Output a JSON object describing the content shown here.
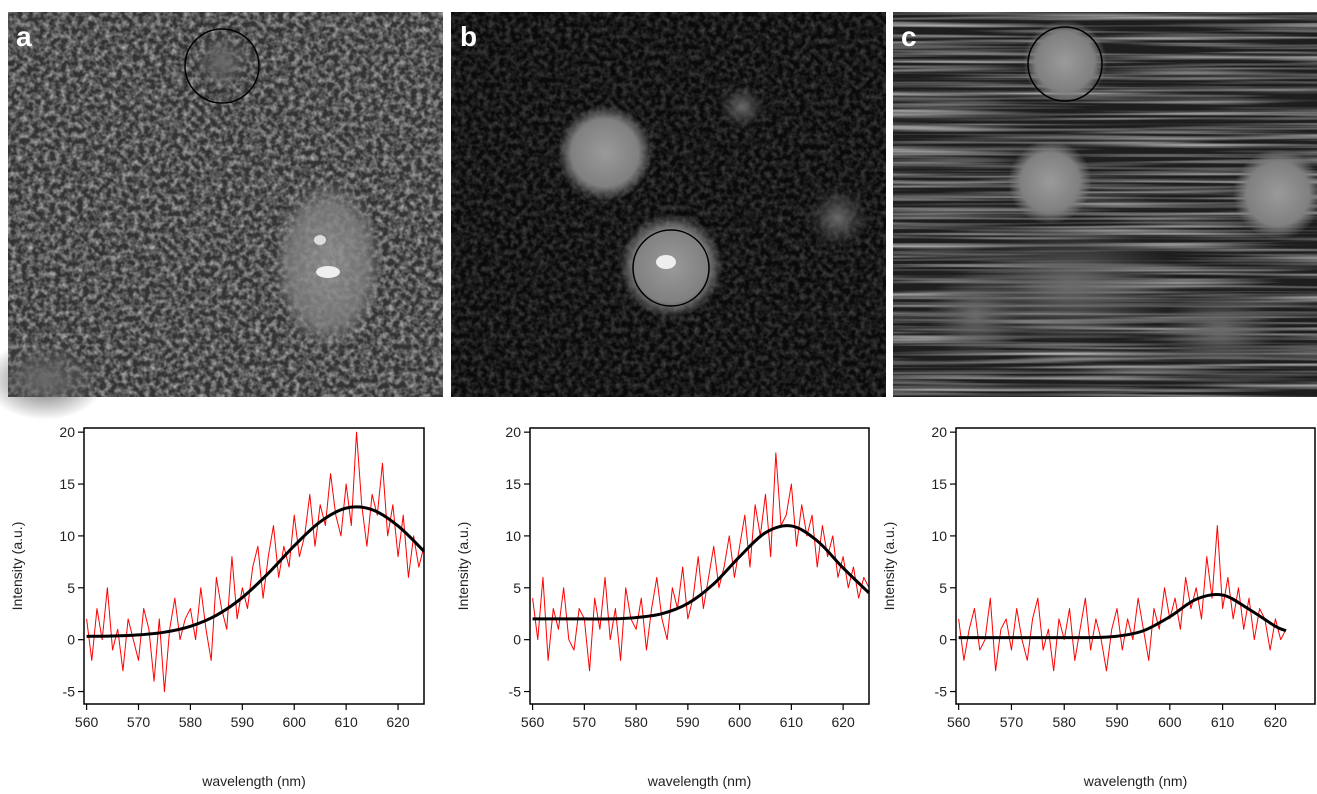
{
  "panels": [
    {
      "label": "a"
    },
    {
      "label": "b"
    },
    {
      "label": "c"
    }
  ],
  "chart_data": [
    {
      "type": "line",
      "ylabel": "Intensity (a.u.)",
      "xlabel": "wavelength (nm)",
      "xlim": [
        559.5,
        625
      ],
      "ylim": [
        -6.2,
        20.4
      ],
      "xticks": [
        560,
        570,
        580,
        590,
        600,
        610,
        620
      ],
      "yticks": [
        -5,
        0,
        5,
        10,
        15,
        20
      ],
      "grid": false,
      "series": [
        {
          "color": "#ff0000",
          "line_width": 1,
          "x": [
            560,
            561,
            562,
            563,
            564,
            565,
            566,
            567,
            568,
            569,
            570,
            571,
            572,
            573,
            574,
            575,
            576,
            577,
            578,
            579,
            580,
            581,
            582,
            583,
            584,
            585,
            586,
            587,
            588,
            589,
            590,
            591,
            592,
            593,
            594,
            595,
            596,
            597,
            598,
            599,
            600,
            601,
            602,
            603,
            604,
            605,
            606,
            607,
            608,
            609,
            610,
            611,
            612,
            613,
            614,
            615,
            616,
            617,
            618,
            619,
            620,
            621,
            622,
            623,
            624,
            625
          ],
          "values": [
            2,
            -2,
            3,
            0,
            5,
            -1,
            1,
            -3,
            2,
            0,
            -2,
            3,
            1,
            -4,
            2,
            -5,
            1,
            4,
            0,
            2,
            3,
            0,
            5,
            1,
            -2,
            6,
            3,
            1,
            8,
            2,
            5,
            3,
            7,
            9,
            4,
            8,
            11,
            6,
            9,
            7,
            12,
            8,
            10,
            14,
            9,
            13,
            11,
            16,
            12,
            10,
            15,
            11,
            20,
            13,
            9,
            14,
            12,
            17,
            10,
            13,
            8,
            12,
            6,
            10,
            7,
            9
          ]
        },
        {
          "color": "#000000",
          "line_width": 3,
          "x": [
            560,
            565,
            570,
            575,
            580,
            585,
            590,
            595,
            600,
            605,
            610,
            615,
            620,
            625
          ],
          "values": [
            0.32,
            0.35,
            0.46,
            0.72,
            1.29,
            2.35,
            4.06,
            6.4,
            9.05,
            11.36,
            12.68,
            12.53,
            10.96,
            8.52
          ]
        }
      ]
    },
    {
      "type": "line",
      "ylabel": "Intensity (a.u.)",
      "xlabel": "wavelength (nm)",
      "xlim": [
        559.5,
        625
      ],
      "ylim": [
        -6.2,
        20.4
      ],
      "xticks": [
        560,
        570,
        580,
        590,
        600,
        610,
        620
      ],
      "yticks": [
        -5,
        0,
        5,
        10,
        15,
        20
      ],
      "grid": false,
      "series": [
        {
          "color": "#ff0000",
          "line_width": 1,
          "x": [
            560,
            561,
            562,
            563,
            564,
            565,
            566,
            567,
            568,
            569,
            570,
            571,
            572,
            573,
            574,
            575,
            576,
            577,
            578,
            579,
            580,
            581,
            582,
            583,
            584,
            585,
            586,
            587,
            588,
            589,
            590,
            591,
            592,
            593,
            594,
            595,
            596,
            597,
            598,
            599,
            600,
            601,
            602,
            603,
            604,
            605,
            606,
            607,
            608,
            609,
            610,
            611,
            612,
            613,
            614,
            615,
            616,
            617,
            618,
            619,
            620,
            621,
            622,
            623,
            624,
            625
          ],
          "values": [
            4,
            0,
            6,
            -2,
            3,
            1,
            5,
            0,
            -1,
            3,
            2,
            -3,
            4,
            1,
            6,
            0,
            3,
            -2,
            5,
            2,
            1,
            4,
            -1,
            3,
            6,
            2,
            0,
            5,
            3,
            7,
            2,
            4,
            8,
            3,
            6,
            9,
            5,
            7,
            10,
            6,
            9,
            12,
            7,
            13,
            10,
            14,
            8,
            18,
            11,
            12,
            15,
            9,
            13,
            10,
            12,
            7,
            11,
            8,
            10,
            6,
            8,
            5,
            7,
            4,
            6,
            5
          ]
        },
        {
          "color": "#000000",
          "line_width": 3,
          "x": [
            560,
            565,
            570,
            575,
            580,
            585,
            590,
            595,
            600,
            605,
            610,
            615,
            620,
            625
          ],
          "values": [
            2.0,
            2.0,
            2.0,
            2.0,
            2.13,
            2.5,
            3.49,
            5.38,
            8.0,
            10.31,
            10.96,
            9.52,
            6.91,
            4.5
          ]
        }
      ]
    },
    {
      "type": "line",
      "ylabel": "Intensity (a.u.)",
      "xlabel": "wavelength (nm)",
      "xlim": [
        559.5,
        627.5
      ],
      "ylim": [
        -6.2,
        20.4
      ],
      "xticks": [
        560,
        570,
        580,
        590,
        600,
        610,
        620
      ],
      "yticks": [
        -5,
        0,
        5,
        10,
        15,
        20
      ],
      "grid": false,
      "series": [
        {
          "color": "#ff0000",
          "line_width": 1,
          "x": [
            560,
            561,
            562,
            563,
            564,
            565,
            566,
            567,
            568,
            569,
            570,
            571,
            572,
            573,
            574,
            575,
            576,
            577,
            578,
            579,
            580,
            581,
            582,
            583,
            584,
            585,
            586,
            587,
            588,
            589,
            590,
            591,
            592,
            593,
            594,
            595,
            596,
            597,
            598,
            599,
            600,
            601,
            602,
            603,
            604,
            605,
            606,
            607,
            608,
            609,
            610,
            611,
            612,
            613,
            614,
            615,
            616,
            617,
            618,
            619,
            620,
            621,
            622
          ],
          "values": [
            2,
            -2,
            1,
            3,
            -1,
            0,
            4,
            -3,
            1,
            2,
            -1,
            3,
            0,
            -2,
            2,
            4,
            -1,
            1,
            -3,
            2,
            0,
            3,
            -2,
            1,
            4,
            -1,
            2,
            0,
            -3,
            1,
            3,
            -1,
            2,
            0,
            4,
            1,
            -2,
            3,
            1,
            5,
            2,
            4,
            1,
            6,
            3,
            5,
            2,
            8,
            4,
            11,
            3,
            6,
            2,
            5,
            1,
            4,
            0,
            3,
            2,
            -1,
            2,
            0,
            1
          ]
        },
        {
          "color": "#000000",
          "line_width": 3,
          "x": [
            560,
            565,
            570,
            575,
            580,
            585,
            590,
            595,
            600,
            605,
            610,
            615,
            620,
            622
          ],
          "values": [
            0.2,
            0.2,
            0.2,
            0.2,
            0.2,
            0.2,
            0.33,
            0.86,
            2.21,
            3.9,
            4.3,
            2.93,
            1.29,
            0.86
          ]
        }
      ]
    }
  ]
}
